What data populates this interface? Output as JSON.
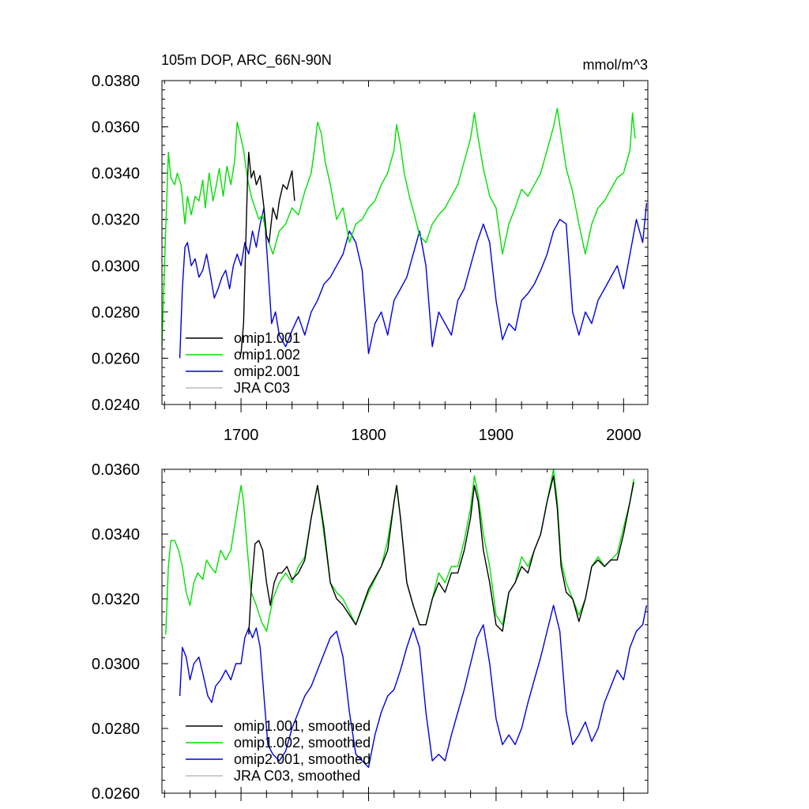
{
  "chart_data": [
    {
      "type": "line",
      "title": "105m DOP, ARC_66N-90N",
      "units": "mmol/m^3",
      "xlim": [
        1638,
        2019
      ],
      "ylim": [
        0.024,
        0.038
      ],
      "x_ticks": [
        "1700",
        "1800",
        "1900",
        "2000"
      ],
      "y_ticks": [
        "0.0240",
        "0.0260",
        "0.0280",
        "0.0300",
        "0.0320",
        "0.0340",
        "0.0360",
        "0.0380"
      ],
      "legend": [
        "omip1.001",
        "omip1.002",
        "omip2.001",
        "JRA C03"
      ],
      "colors": [
        "#000000",
        "#00e000",
        "#0000dd",
        "#bbbbbb"
      ],
      "series": [
        {
          "name": "omip1.001",
          "x": [
            1700,
            1702,
            1704,
            1705,
            1706,
            1708,
            1710,
            1712,
            1715,
            1718,
            1720,
            1722,
            1725,
            1728,
            1730,
            1733,
            1736,
            1740,
            1742
          ],
          "y": [
            0.0262,
            0.0275,
            0.0315,
            0.0335,
            0.0349,
            0.0338,
            0.0341,
            0.0335,
            0.0339,
            0.0325,
            0.0313,
            0.031,
            0.0325,
            0.032,
            0.0328,
            0.0335,
            0.0333,
            0.0341,
            0.0328
          ]
        },
        {
          "name": "omip1.002",
          "x": [
            1638,
            1640,
            1643,
            1645,
            1648,
            1650,
            1653,
            1656,
            1658,
            1661,
            1664,
            1667,
            1670,
            1672,
            1675,
            1678,
            1680,
            1683,
            1686,
            1689,
            1692,
            1695,
            1697,
            1700,
            1702,
            1705,
            1708,
            1711,
            1714,
            1717,
            1720,
            1725,
            1730,
            1735,
            1740,
            1745,
            1750,
            1755,
            1758,
            1760,
            1763,
            1766,
            1770,
            1775,
            1780,
            1785,
            1790,
            1795,
            1800,
            1805,
            1810,
            1815,
            1820,
            1822,
            1825,
            1828,
            1832,
            1836,
            1840,
            1845,
            1850,
            1855,
            1860,
            1865,
            1870,
            1875,
            1880,
            1883,
            1886,
            1890,
            1895,
            1900,
            1905,
            1910,
            1915,
            1920,
            1925,
            1930,
            1935,
            1940,
            1945,
            1948,
            1951,
            1955,
            1960,
            1965,
            1970,
            1975,
            1980,
            1985,
            1990,
            1995,
            2000,
            2005,
            2007,
            2009
          ],
          "y": [
            0.0265,
            0.03,
            0.0349,
            0.0338,
            0.0335,
            0.034,
            0.0335,
            0.0318,
            0.033,
            0.0322,
            0.033,
            0.0328,
            0.0337,
            0.0325,
            0.034,
            0.0328,
            0.0333,
            0.0342,
            0.033,
            0.0343,
            0.0335,
            0.0345,
            0.0362,
            0.0355,
            0.035,
            0.0338,
            0.033,
            0.0325,
            0.032,
            0.0322,
            0.0313,
            0.0305,
            0.0315,
            0.0318,
            0.0325,
            0.0322,
            0.0332,
            0.034,
            0.0352,
            0.0362,
            0.0357,
            0.0345,
            0.0335,
            0.032,
            0.0325,
            0.031,
            0.0318,
            0.032,
            0.0325,
            0.0328,
            0.0335,
            0.034,
            0.035,
            0.0361,
            0.0352,
            0.034,
            0.033,
            0.0322,
            0.0313,
            0.031,
            0.0318,
            0.0322,
            0.0325,
            0.033,
            0.0335,
            0.0345,
            0.0355,
            0.0366,
            0.0355,
            0.0342,
            0.033,
            0.0325,
            0.0305,
            0.0318,
            0.0325,
            0.0333,
            0.033,
            0.0335,
            0.034,
            0.035,
            0.036,
            0.0368,
            0.0357,
            0.0342,
            0.0332,
            0.0318,
            0.0305,
            0.0318,
            0.0325,
            0.0328,
            0.0333,
            0.0338,
            0.034,
            0.035,
            0.0366,
            0.0355
          ]
        },
        {
          "name": "omip2.001",
          "x": [
            1652,
            1654,
            1656,
            1658,
            1661,
            1664,
            1667,
            1670,
            1673,
            1676,
            1679,
            1682,
            1685,
            1688,
            1691,
            1694,
            1697,
            1700,
            1703,
            1706,
            1709,
            1712,
            1715,
            1718,
            1721,
            1724,
            1727,
            1730,
            1735,
            1740,
            1745,
            1750,
            1755,
            1760,
            1765,
            1770,
            1775,
            1780,
            1785,
            1790,
            1795,
            1800,
            1805,
            1810,
            1815,
            1820,
            1825,
            1830,
            1835,
            1840,
            1845,
            1850,
            1855,
            1860,
            1865,
            1870,
            1875,
            1880,
            1885,
            1890,
            1895,
            1900,
            1905,
            1910,
            1915,
            1920,
            1925,
            1930,
            1935,
            1940,
            1945,
            1950,
            1955,
            1960,
            1965,
            1970,
            1975,
            1980,
            1985,
            1990,
            1995,
            2000,
            2005,
            2010,
            2015,
            2018
          ],
          "y": [
            0.026,
            0.029,
            0.0308,
            0.031,
            0.03,
            0.0303,
            0.0295,
            0.0298,
            0.0305,
            0.0296,
            0.0286,
            0.029,
            0.0295,
            0.0298,
            0.029,
            0.03,
            0.0305,
            0.03,
            0.031,
            0.0305,
            0.0315,
            0.0308,
            0.0318,
            0.0325,
            0.03,
            0.0275,
            0.028,
            0.027,
            0.0265,
            0.0272,
            0.0278,
            0.027,
            0.028,
            0.0285,
            0.0292,
            0.0295,
            0.03,
            0.0305,
            0.0315,
            0.031,
            0.0298,
            0.0262,
            0.0275,
            0.028,
            0.027,
            0.0285,
            0.029,
            0.0295,
            0.0305,
            0.0315,
            0.03,
            0.0265,
            0.028,
            0.0275,
            0.027,
            0.0285,
            0.029,
            0.03,
            0.031,
            0.0318,
            0.031,
            0.0285,
            0.0268,
            0.0275,
            0.0272,
            0.0285,
            0.0288,
            0.0292,
            0.0298,
            0.0305,
            0.0315,
            0.032,
            0.0318,
            0.028,
            0.027,
            0.028,
            0.0275,
            0.0285,
            0.029,
            0.0295,
            0.03,
            0.029,
            0.0305,
            0.032,
            0.031,
            0.0327
          ]
        },
        {
          "name": "JRA C03",
          "x": [],
          "y": []
        }
      ]
    },
    {
      "type": "line",
      "title": "",
      "xlim": [
        1638,
        2019
      ],
      "ylim": [
        0.026,
        0.036
      ],
      "y_ticks": [
        "0.0260",
        "0.0280",
        "0.0300",
        "0.0320",
        "0.0340",
        "0.0360"
      ],
      "legend": [
        "omip1.001, smoothed",
        "omip1.002, smoothed",
        "omip2.001, smoothed",
        "JRA C03, smoothed"
      ],
      "colors": [
        "#000000",
        "#00e000",
        "#0000dd",
        "#bbbbbb"
      ],
      "series": [
        {
          "name": "omip1.001, smoothed",
          "x": [
            1706,
            1708,
            1711,
            1714,
            1717,
            1720,
            1723,
            1726,
            1729,
            1732,
            1736,
            1740,
            1745,
            1750,
            1755,
            1760,
            1765,
            1770,
            1775,
            1780,
            1790,
            1800,
            1810,
            1815,
            1820,
            1822,
            1825,
            1830,
            1835,
            1840,
            1845,
            1850,
            1855,
            1860,
            1865,
            1870,
            1875,
            1880,
            1883,
            1886,
            1890,
            1895,
            1900,
            1905,
            1910,
            1915,
            1920,
            1925,
            1930,
            1935,
            1940,
            1945,
            1948,
            1951,
            1955,
            1960,
            1965,
            1970,
            1975,
            1980,
            1985,
            1990,
            1995,
            2000,
            2005,
            2008
          ],
          "y": [
            0.0309,
            0.0323,
            0.0337,
            0.0338,
            0.0335,
            0.0325,
            0.0318,
            0.0325,
            0.0328,
            0.0328,
            0.033,
            0.0326,
            0.0328,
            0.0332,
            0.0345,
            0.0355,
            0.0342,
            0.0325,
            0.032,
            0.0318,
            0.0312,
            0.0323,
            0.033,
            0.0335,
            0.035,
            0.0355,
            0.0345,
            0.0325,
            0.0318,
            0.0312,
            0.0312,
            0.032,
            0.0325,
            0.0322,
            0.0328,
            0.0328,
            0.0335,
            0.0345,
            0.0355,
            0.035,
            0.0335,
            0.0325,
            0.0312,
            0.031,
            0.0322,
            0.0325,
            0.033,
            0.0328,
            0.0335,
            0.034,
            0.035,
            0.0358,
            0.0348,
            0.033,
            0.0322,
            0.032,
            0.0313,
            0.032,
            0.033,
            0.0332,
            0.033,
            0.0332,
            0.0332,
            0.034,
            0.035,
            0.0356
          ]
        },
        {
          "name": "omip1.002, smoothed",
          "x": [
            1641,
            1643,
            1645,
            1648,
            1651,
            1654,
            1657,
            1660,
            1663,
            1666,
            1670,
            1673,
            1676,
            1680,
            1684,
            1688,
            1692,
            1696,
            1700,
            1702,
            1705,
            1708,
            1712,
            1716,
            1720,
            1725,
            1730,
            1735,
            1740,
            1745,
            1750,
            1755,
            1760,
            1765,
            1770,
            1775,
            1780,
            1790,
            1800,
            1810,
            1815,
            1820,
            1822,
            1825,
            1830,
            1835,
            1840,
            1845,
            1850,
            1855,
            1860,
            1865,
            1870,
            1875,
            1880,
            1883,
            1886,
            1890,
            1895,
            1900,
            1905,
            1910,
            1915,
            1920,
            1925,
            1930,
            1935,
            1940,
            1945,
            1948,
            1951,
            1955,
            1960,
            1965,
            1970,
            1975,
            1980,
            1985,
            1990,
            1995,
            2000,
            2005,
            2008
          ],
          "y": [
            0.0309,
            0.033,
            0.0338,
            0.0338,
            0.0335,
            0.033,
            0.0322,
            0.0318,
            0.0325,
            0.0328,
            0.0326,
            0.0332,
            0.033,
            0.0328,
            0.0335,
            0.0332,
            0.0335,
            0.0345,
            0.0355,
            0.035,
            0.0335,
            0.0322,
            0.0318,
            0.0313,
            0.031,
            0.032,
            0.0325,
            0.0328,
            0.0325,
            0.033,
            0.0333,
            0.0345,
            0.0355,
            0.034,
            0.0325,
            0.0322,
            0.032,
            0.0312,
            0.0322,
            0.033,
            0.0338,
            0.035,
            0.0355,
            0.0345,
            0.0325,
            0.0318,
            0.0312,
            0.0312,
            0.032,
            0.0328,
            0.0325,
            0.033,
            0.033,
            0.0338,
            0.0348,
            0.0358,
            0.0352,
            0.034,
            0.033,
            0.0315,
            0.0312,
            0.0322,
            0.0325,
            0.0333,
            0.033,
            0.0335,
            0.034,
            0.035,
            0.036,
            0.035,
            0.0332,
            0.0325,
            0.032,
            0.0315,
            0.032,
            0.033,
            0.0333,
            0.033,
            0.0332,
            0.0334,
            0.0342,
            0.035,
            0.0357
          ]
        },
        {
          "name": "omip2.001, smoothed",
          "x": [
            1652,
            1654,
            1657,
            1660,
            1663,
            1667,
            1670,
            1674,
            1677,
            1680,
            1684,
            1688,
            1692,
            1696,
            1700,
            1703,
            1706,
            1709,
            1712,
            1715,
            1718,
            1721,
            1725,
            1730,
            1735,
            1740,
            1745,
            1750,
            1755,
            1760,
            1765,
            1770,
            1775,
            1780,
            1785,
            1790,
            1795,
            1800,
            1805,
            1810,
            1815,
            1820,
            1825,
            1830,
            1835,
            1840,
            1845,
            1850,
            1855,
            1860,
            1865,
            1870,
            1875,
            1880,
            1885,
            1890,
            1895,
            1900,
            1905,
            1910,
            1915,
            1920,
            1925,
            1930,
            1935,
            1940,
            1945,
            1950,
            1955,
            1960,
            1965,
            1970,
            1975,
            1980,
            1985,
            1990,
            1995,
            2000,
            2005,
            2010,
            2015,
            2018
          ],
          "y": [
            0.029,
            0.0305,
            0.0302,
            0.0295,
            0.03,
            0.0302,
            0.0297,
            0.029,
            0.0288,
            0.0293,
            0.0295,
            0.0298,
            0.0295,
            0.03,
            0.03,
            0.0308,
            0.0311,
            0.0308,
            0.0311,
            0.0305,
            0.029,
            0.0275,
            0.0272,
            0.027,
            0.0273,
            0.028,
            0.0285,
            0.029,
            0.0293,
            0.0298,
            0.0303,
            0.0308,
            0.031,
            0.0302,
            0.0285,
            0.0272,
            0.027,
            0.0268,
            0.0278,
            0.0285,
            0.029,
            0.0292,
            0.0298,
            0.0305,
            0.0311,
            0.0305,
            0.0285,
            0.027,
            0.0272,
            0.027,
            0.0278,
            0.0285,
            0.0292,
            0.03,
            0.0308,
            0.0312,
            0.03,
            0.0283,
            0.0275,
            0.0278,
            0.0275,
            0.028,
            0.0288,
            0.0295,
            0.0302,
            0.031,
            0.0318,
            0.031,
            0.0285,
            0.0275,
            0.0278,
            0.0282,
            0.0276,
            0.028,
            0.0288,
            0.0293,
            0.0298,
            0.0295,
            0.0305,
            0.031,
            0.0312,
            0.0318
          ]
        },
        {
          "name": "JRA C03, smoothed",
          "x": [],
          "y": []
        }
      ]
    }
  ]
}
